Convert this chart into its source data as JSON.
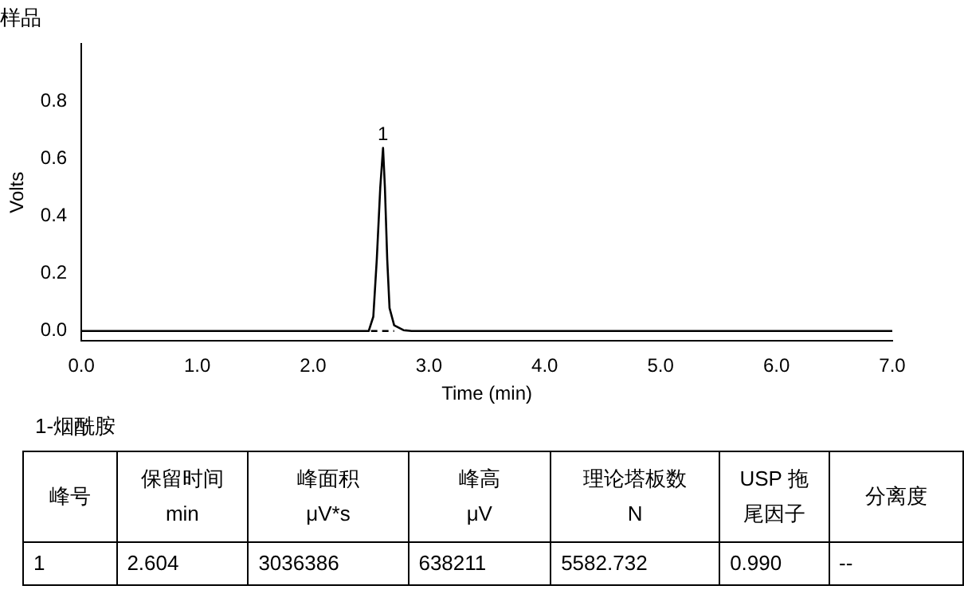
{
  "chart_data": [
    {
      "type": "line",
      "title": "样品",
      "xlabel": "Time (min)",
      "ylabel": "Volts",
      "xlim": [
        0,
        7
      ],
      "ylim": [
        -0.035,
        1.0
      ],
      "xticks": [
        {
          "value": 0,
          "label": "0.0"
        },
        {
          "value": 1,
          "label": "1.0"
        },
        {
          "value": 2,
          "label": "2.0"
        },
        {
          "value": 3,
          "label": "3.0"
        },
        {
          "value": 4,
          "label": "4.0"
        },
        {
          "value": 5,
          "label": "5.0"
        },
        {
          "value": 6,
          "label": "6.0"
        },
        {
          "value": 7,
          "label": "7.0"
        }
      ],
      "yticks": [
        {
          "value": 0,
          "label": "0.0"
        },
        {
          "value": 0.2,
          "label": "0.2"
        },
        {
          "value": 0.4,
          "label": "0.4"
        },
        {
          "value": 0.6,
          "label": "0.6"
        },
        {
          "value": 0.8,
          "label": "0.8"
        }
      ],
      "series": [
        {
          "color": "#000000",
          "x": [
            0,
            2.48,
            2.52,
            2.55,
            2.58,
            2.604,
            2.62,
            2.64,
            2.66,
            2.7,
            2.78,
            2.85,
            7
          ],
          "values": [
            0,
            0,
            0.05,
            0.25,
            0.5,
            0.638,
            0.5,
            0.25,
            0.08,
            0.02,
            0.003,
            0,
            0
          ]
        },
        {
          "color": "#000000",
          "line_style": "dashed",
          "x": [
            2.5,
            2.7
          ],
          "values": [
            0,
            0
          ]
        }
      ],
      "annotations": [
        {
          "text": "1",
          "x": 2.604,
          "y": 0.638
        }
      ],
      "grid": false,
      "legend": false,
      "marker": "none"
    },
    {
      "type": "other",
      "title": "1-烟酰胺",
      "annotations": [
        "峰号",
        "保留时间\nmin",
        "峰面积\nμV*s",
        "峰高\nμV",
        "理论塔板数\nN",
        "USP 拖尾因子",
        "分离度",
        "1",
        "2.604",
        "3036386",
        "638211",
        "5582.732",
        "0.990",
        "--"
      ]
    }
  ]
}
